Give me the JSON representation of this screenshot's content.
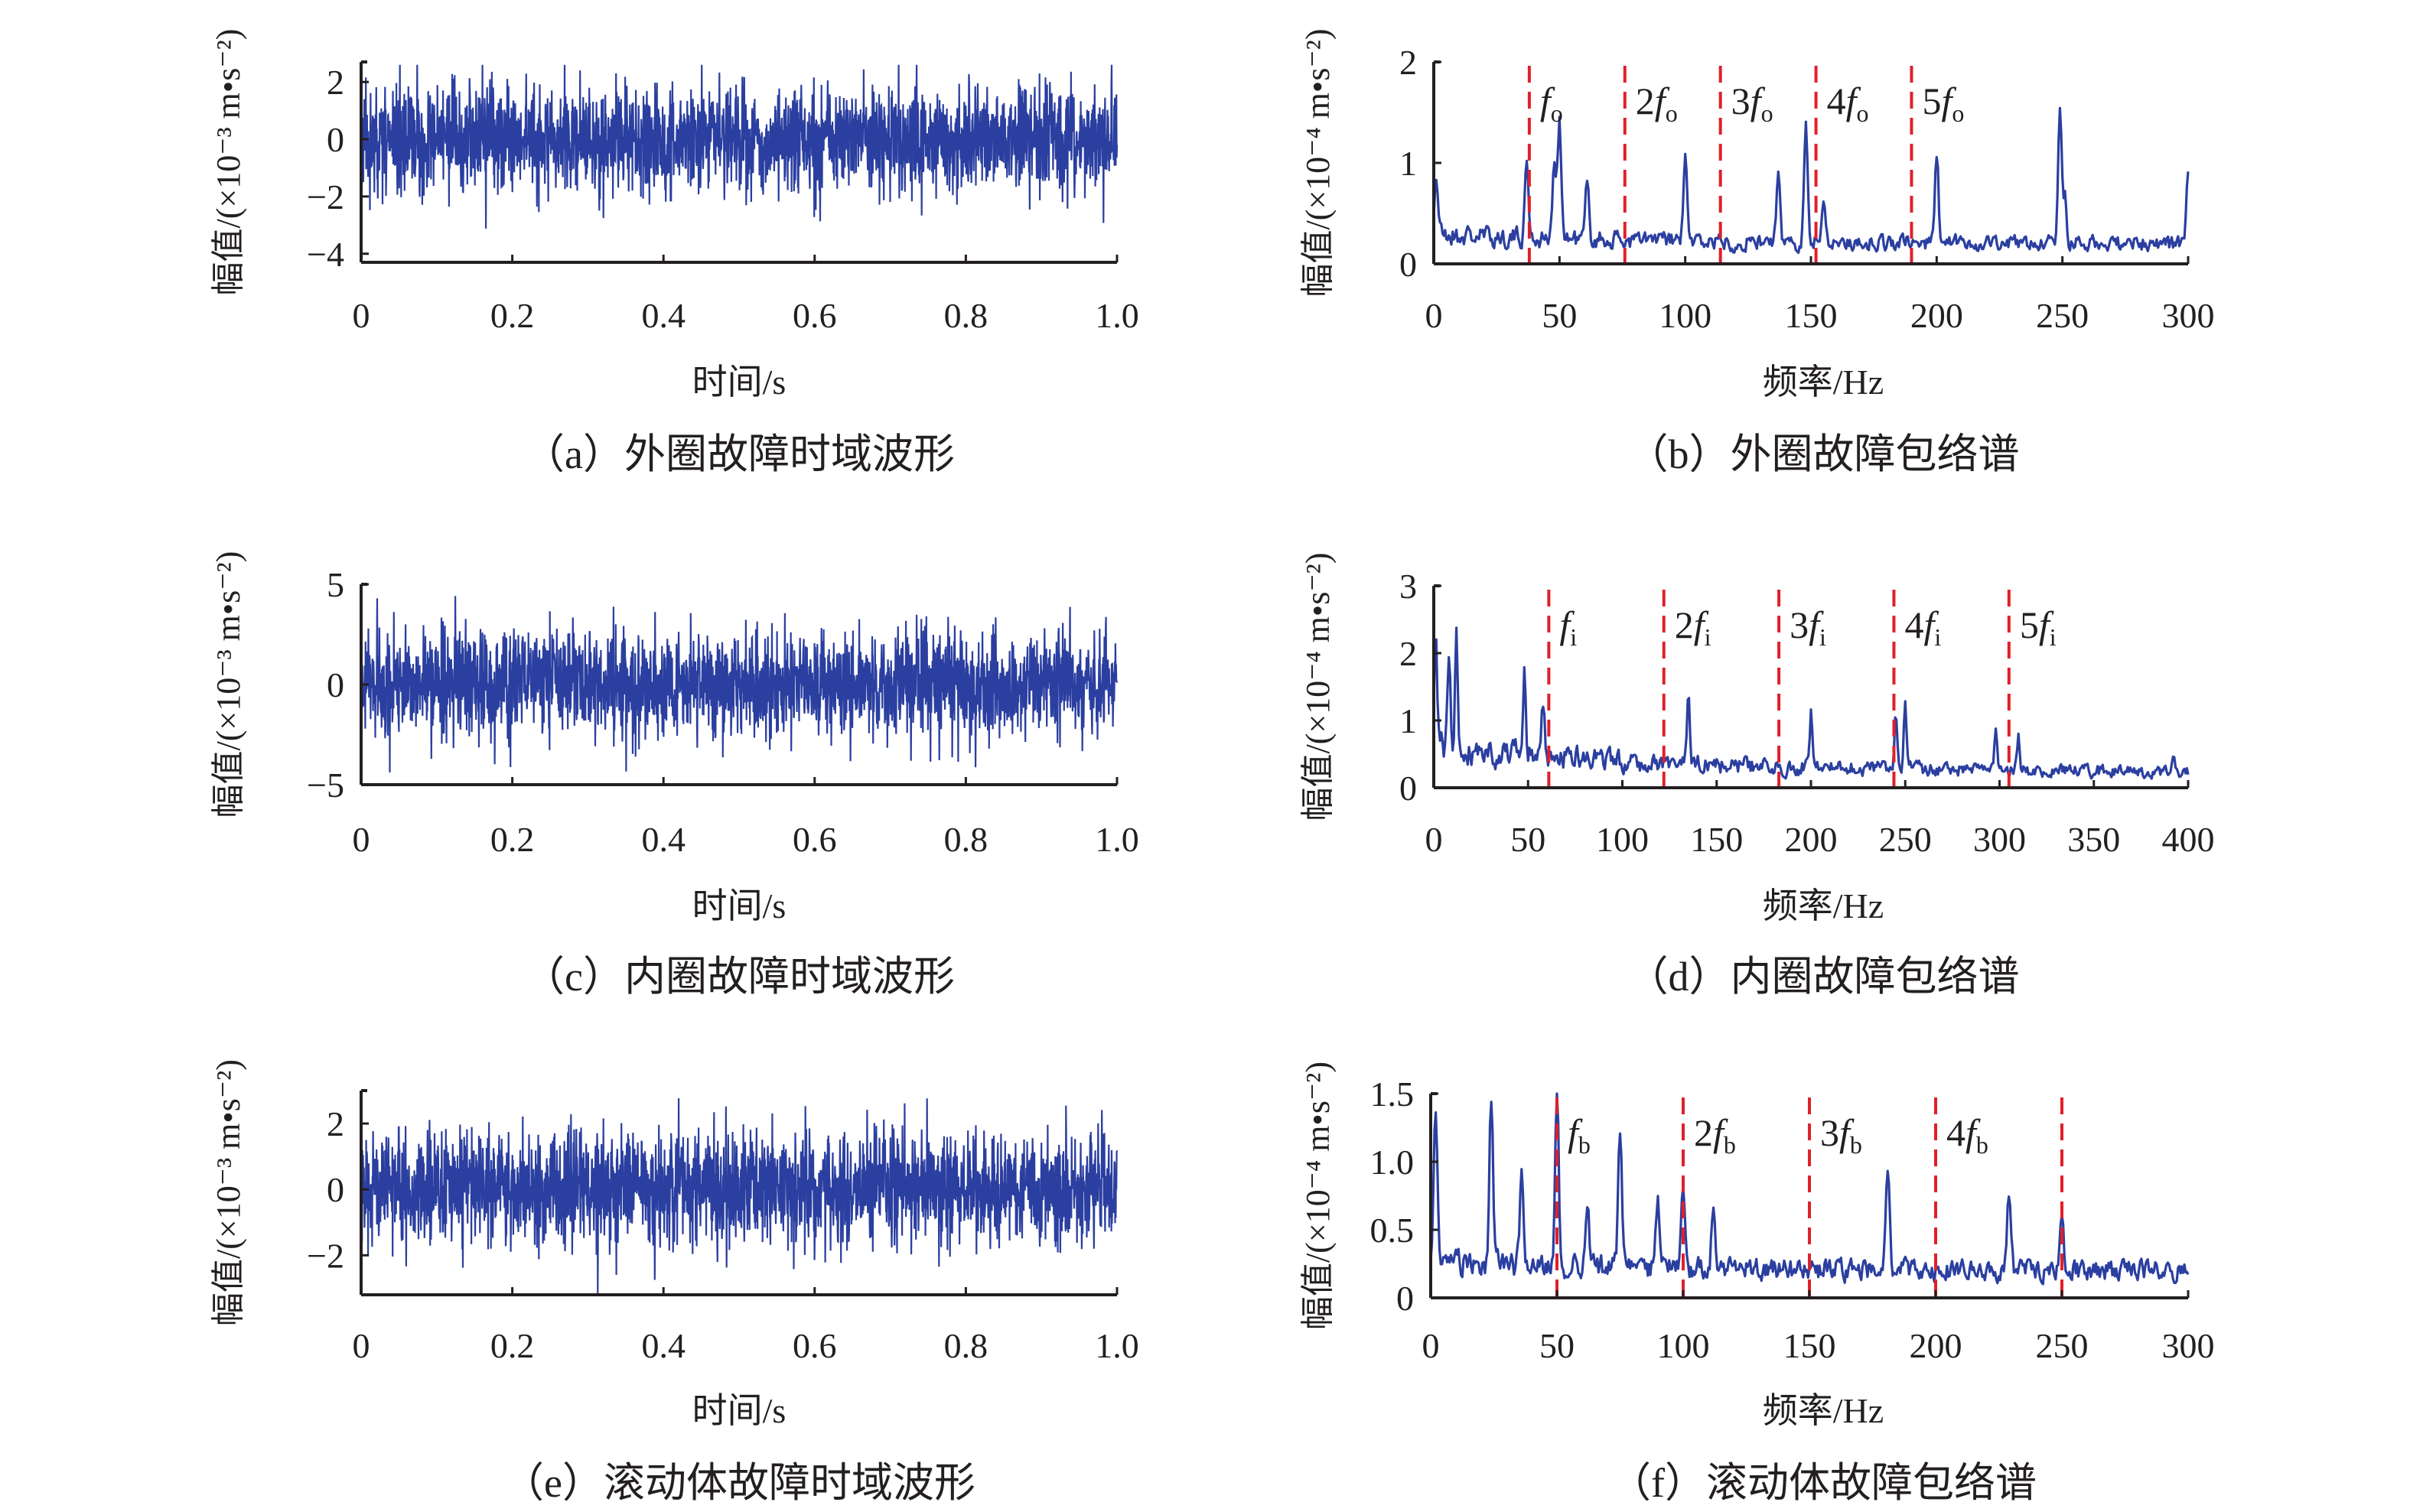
{
  "colors": {
    "signal": "#2b3fa0",
    "marker": "#e0202a",
    "axis": "#231f20"
  },
  "chart_data": [
    {
      "id": "a",
      "type": "line",
      "caption": "（a）外圈故障时域波形",
      "xlabel": "时间/s",
      "ylabel": "幅值/(×10⁻³ m•s⁻²)",
      "xlim": [
        0,
        1.0
      ],
      "ylim": [
        -4.3,
        2.7
      ],
      "xticks": [
        "0",
        "0.2",
        "0.4",
        "0.6",
        "0.8",
        "1.0"
      ],
      "xtick_values": [
        0,
        0.2,
        0.4,
        0.6,
        0.8,
        1.0
      ],
      "yticks": [
        "2",
        "0",
        "−2",
        "−4"
      ],
      "ytick_values": [
        2,
        0,
        -2,
        -4
      ],
      "signal": {
        "kind": "noise",
        "std": 0.9,
        "min": -4.2,
        "max": 2.6,
        "samples": 2400,
        "seed": 11
      }
    },
    {
      "id": "b",
      "type": "line",
      "caption": "（b）外圈故障包络谱",
      "xlabel": "频率/Hz",
      "ylabel": "幅值/(×10⁻⁴ m•s⁻²)",
      "xlim": [
        0,
        300
      ],
      "ylim": [
        0,
        2
      ],
      "xticks": [
        "0",
        "50",
        "100",
        "150",
        "200",
        "250",
        "300"
      ],
      "xtick_values": [
        0,
        50,
        100,
        150,
        200,
        250,
        300
      ],
      "yticks": [
        "2",
        "1",
        "0"
      ],
      "ytick_values": [
        2,
        1,
        0
      ],
      "spectrum": {
        "base": 0.22,
        "decay": 0.15,
        "seed": 21,
        "peaks": [
          [
            1,
            0.6
          ],
          [
            37,
            0.75
          ],
          [
            48,
            0.7
          ],
          [
            50,
            1.2
          ],
          [
            61,
            0.55
          ],
          [
            100,
            0.8
          ],
          [
            137,
            0.6
          ],
          [
            148,
            1.15
          ],
          [
            155,
            0.5
          ],
          [
            200,
            0.9
          ],
          [
            249,
            1.38
          ],
          [
            251,
            0.45
          ],
          [
            300,
            0.65
          ]
        ]
      },
      "markers": [
        {
          "x": 38,
          "label": "f",
          "sub": "o",
          "prefix": ""
        },
        {
          "x": 76,
          "label": "f",
          "sub": "o",
          "prefix": "2"
        },
        {
          "x": 114,
          "label": "f",
          "sub": "o",
          "prefix": "3"
        },
        {
          "x": 152,
          "label": "f",
          "sub": "o",
          "prefix": "4"
        },
        {
          "x": 190,
          "label": "f",
          "sub": "o",
          "prefix": "5"
        }
      ]
    },
    {
      "id": "c",
      "type": "line",
      "caption": "（c）内圈故障时域波形",
      "xlabel": "时间/s",
      "ylabel": "幅值/(×10⁻³ m•s⁻²)",
      "xlim": [
        0,
        1.0
      ],
      "ylim": [
        -5,
        5
      ],
      "xticks": [
        "0",
        "0.2",
        "0.4",
        "0.6",
        "0.8",
        "1.0"
      ],
      "xtick_values": [
        0,
        0.2,
        0.4,
        0.6,
        0.8,
        1.0
      ],
      "yticks": [
        "5",
        "0",
        "−5"
      ],
      "ytick_values": [
        5,
        0,
        -5
      ],
      "signal": {
        "kind": "noise",
        "std": 1.3,
        "min": -5,
        "max": 5.2,
        "samples": 2400,
        "seed": 33
      }
    },
    {
      "id": "d",
      "type": "line",
      "caption": "（d）内圈故障包络谱",
      "xlabel": "频率/Hz",
      "ylabel": "幅值/(×10⁻⁴ m•s⁻²)",
      "xlim": [
        0,
        400
      ],
      "ylim": [
        0,
        3
      ],
      "xticks": [
        "0",
        "50",
        "100",
        "150",
        "200",
        "250",
        "300",
        "350",
        "400"
      ],
      "xtick_values": [
        0,
        50,
        100,
        150,
        200,
        250,
        300,
        350,
        400
      ],
      "yticks": [
        "3",
        "2",
        "1",
        "0"
      ],
      "ytick_values": [
        3,
        2,
        1,
        0
      ],
      "spectrum": {
        "base": 0.25,
        "decay": 0.6,
        "seed": 41,
        "peaks": [
          [
            1,
            1.7
          ],
          [
            8,
            1.4
          ],
          [
            12,
            1.65
          ],
          [
            48,
            1.2
          ],
          [
            58,
            0.8
          ],
          [
            135,
            0.95
          ],
          [
            200,
            0.8
          ],
          [
            245,
            0.95
          ],
          [
            250,
            1.0
          ],
          [
            298,
            0.7
          ],
          [
            310,
            0.55
          ],
          [
            392,
            0.3
          ]
        ]
      },
      "markers": [
        {
          "x": 61,
          "label": "f",
          "sub": "i",
          "prefix": ""
        },
        {
          "x": 122,
          "label": "f",
          "sub": "i",
          "prefix": "2"
        },
        {
          "x": 183,
          "label": "f",
          "sub": "i",
          "prefix": "3"
        },
        {
          "x": 244,
          "label": "f",
          "sub": "i",
          "prefix": "4"
        },
        {
          "x": 305,
          "label": "f",
          "sub": "i",
          "prefix": "5"
        }
      ]
    },
    {
      "id": "e",
      "type": "line",
      "caption": "（e）滚动体故障时域波形",
      "xlabel": "时间/s",
      "ylabel": "幅值/(×10⁻³ m•s⁻²)",
      "xlim": [
        0,
        1.0
      ],
      "ylim": [
        -3.2,
        3.0
      ],
      "xticks": [
        "0",
        "0.2",
        "0.4",
        "0.6",
        "0.8",
        "1.0"
      ],
      "xtick_values": [
        0,
        0.2,
        0.4,
        0.6,
        0.8,
        1.0
      ],
      "yticks": [
        "2",
        "0",
        "−2"
      ],
      "ytick_values": [
        2,
        0,
        -2
      ],
      "signal": {
        "kind": "noise",
        "std": 0.85,
        "min": -3.2,
        "max": 3.0,
        "samples": 2400,
        "seed": 55
      }
    },
    {
      "id": "f",
      "type": "line",
      "caption": "（f）滚动体故障包络谱",
      "xlabel": "频率/Hz",
      "ylabel": "幅值/(×10⁻⁴ m•s⁻²)",
      "xlim": [
        0,
        300
      ],
      "ylim": [
        0,
        1.5
      ],
      "xticks": [
        "0",
        "50",
        "100",
        "150",
        "200",
        "250",
        "300"
      ],
      "xtick_values": [
        0,
        50,
        100,
        150,
        200,
        250,
        300
      ],
      "yticks": [
        "1.5",
        "1.0",
        "0.5",
        "0"
      ],
      "ytick_values": [
        1.5,
        1.0,
        0.5,
        0
      ],
      "spectrum": {
        "base": 0.22,
        "decay": 0.1,
        "seed": 61,
        "peaks": [
          [
            2,
            1.15
          ],
          [
            24,
            1.25
          ],
          [
            36,
            0.65
          ],
          [
            50,
            1.33
          ],
          [
            62,
            0.5
          ],
          [
            75,
            0.98
          ],
          [
            90,
            0.5
          ],
          [
            100,
            0.65
          ],
          [
            112,
            0.48
          ],
          [
            181,
            0.74
          ],
          [
            229,
            0.56
          ],
          [
            250,
            0.35
          ]
        ]
      },
      "markers": [
        {
          "x": 50,
          "label": "f",
          "sub": "b",
          "prefix": ""
        },
        {
          "x": 100,
          "label": "f",
          "sub": "b",
          "prefix": "2"
        },
        {
          "x": 150,
          "label": "f",
          "sub": "b",
          "prefix": "3"
        },
        {
          "x": 200,
          "label": "f",
          "sub": "b",
          "prefix": "4"
        },
        {
          "x": 250,
          "label": "",
          "sub": "",
          "prefix": ""
        }
      ]
    }
  ]
}
